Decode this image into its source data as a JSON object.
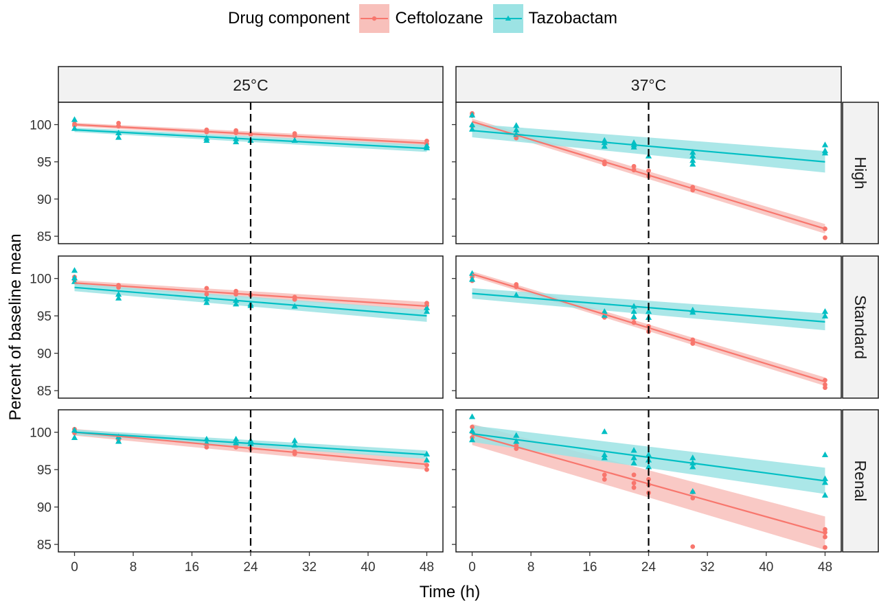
{
  "legend": {
    "title": "Drug component",
    "items": [
      {
        "label": "Ceftolozane",
        "color": "#F8766D",
        "fill": "#F8C0BB",
        "shape": "circle"
      },
      {
        "label": "Tazobactam",
        "color": "#00BFC4",
        "fill": "#9CE3E4",
        "shape": "triangle"
      }
    ]
  },
  "chart_data": {
    "type": "scatter",
    "subtype": "faceted scatter with linear regression fits and confidence bands",
    "xlabel": "Time (h)",
    "ylabel": "Percent of baseline mean",
    "x_ticks": [
      0,
      8,
      16,
      24,
      32,
      40,
      48
    ],
    "y_ticks": [
      85,
      90,
      95,
      100
    ],
    "ylim": [
      84,
      103
    ],
    "xlim": [
      -2.2,
      50.2
    ],
    "vline_x": 24,
    "col_strips": [
      "25°C",
      "37°C"
    ],
    "row_strips": [
      "High",
      "Standard",
      "Renal"
    ],
    "panels": [
      {
        "row": "High",
        "col": "25°C",
        "fits": {
          "Ceftolozane": [
            100.0,
            97.5
          ],
          "Tazobactam": [
            99.3,
            96.8
          ]
        },
        "band": {
          "Ceftolozane": 0.25,
          "Tazobactam": 0.3
        },
        "points": {
          "Ceftolozane": [
            [
              0,
              100.1
            ],
            [
              0,
              99.9
            ],
            [
              6,
              100.2
            ],
            [
              6,
              99.8
            ],
            [
              18,
              99.3
            ],
            [
              18,
              99.0
            ],
            [
              22,
              99.2
            ],
            [
              22,
              98.9
            ],
            [
              24,
              98.7
            ],
            [
              30,
              98.8
            ],
            [
              30,
              98.5
            ],
            [
              48,
              97.8
            ],
            [
              48,
              97.4
            ]
          ],
          "Tazobactam": [
            [
              0,
              100.7
            ],
            [
              0,
              99.5
            ],
            [
              6,
              98.9
            ],
            [
              6,
              98.3
            ],
            [
              18,
              98.2
            ],
            [
              18,
              97.9
            ],
            [
              22,
              98.1
            ],
            [
              22,
              97.7
            ],
            [
              24,
              97.9
            ],
            [
              30,
              97.9
            ],
            [
              48,
              97.2
            ],
            [
              48,
              96.9
            ]
          ]
        }
      },
      {
        "row": "High",
        "col": "37°C",
        "fits": {
          "Ceftolozane": [
            100.4,
            86.0
          ],
          "Tazobactam": [
            99.2,
            95.0
          ]
        },
        "band": {
          "Ceftolozane": 0.4,
          "Tazobactam": 0.9
        },
        "points": {
          "Ceftolozane": [
            [
              0,
              101.5
            ],
            [
              0,
              101.2
            ],
            [
              0,
              99.8
            ],
            [
              6,
              98.6
            ],
            [
              6,
              98.2
            ],
            [
              18,
              95.0
            ],
            [
              18,
              94.7
            ],
            [
              22,
              94.4
            ],
            [
              22,
              93.9
            ],
            [
              24,
              93.8
            ],
            [
              24,
              93.1
            ],
            [
              30,
              91.6
            ],
            [
              30,
              91.2
            ],
            [
              48,
              86.0
            ],
            [
              48,
              84.8
            ]
          ],
          "Tazobactam": [
            [
              0,
              101.3
            ],
            [
              0,
              100.0
            ],
            [
              0,
              99.4
            ],
            [
              6,
              99.9
            ],
            [
              6,
              99.3
            ],
            [
              6,
              98.7
            ],
            [
              18,
              97.9
            ],
            [
              18,
              97.6
            ],
            [
              18,
              97.1
            ],
            [
              22,
              97.6
            ],
            [
              22,
              97.3
            ],
            [
              22,
              97.0
            ],
            [
              24,
              95.8
            ],
            [
              30,
              96.3
            ],
            [
              30,
              95.8
            ],
            [
              30,
              95.2
            ],
            [
              30,
              94.7
            ],
            [
              48,
              97.3
            ],
            [
              48,
              96.5
            ],
            [
              48,
              96.2
            ]
          ]
        }
      },
      {
        "row": "Standard",
        "col": "25°C",
        "fits": {
          "Ceftolozane": [
            99.4,
            96.3
          ],
          "Tazobactam": [
            98.8,
            95.0
          ]
        },
        "band": {
          "Ceftolozane": 0.35,
          "Tazobactam": 0.5
        },
        "points": {
          "Ceftolozane": [
            [
              0,
              100.2
            ],
            [
              0,
              99.8
            ],
            [
              6,
              99.1
            ],
            [
              6,
              98.8
            ],
            [
              18,
              98.7
            ],
            [
              18,
              97.9
            ],
            [
              22,
              98.3
            ],
            [
              22,
              97.9
            ],
            [
              24,
              97.8
            ],
            [
              30,
              97.5
            ],
            [
              30,
              97.2
            ],
            [
              48,
              96.7
            ],
            [
              48,
              96.4
            ]
          ],
          "Tazobactam": [
            [
              0,
              101.1
            ],
            [
              0,
              100.1
            ],
            [
              0,
              99.6
            ],
            [
              6,
              97.9
            ],
            [
              6,
              97.4
            ],
            [
              18,
              97.3
            ],
            [
              18,
              96.8
            ],
            [
              22,
              97.1
            ],
            [
              22,
              96.6
            ],
            [
              24,
              96.6
            ],
            [
              24,
              96.4
            ],
            [
              30,
              96.3
            ],
            [
              48,
              96.1
            ],
            [
              48,
              95.6
            ]
          ]
        }
      },
      {
        "row": "Standard",
        "col": "37°C",
        "fits": {
          "Ceftolozane": [
            100.6,
            86.2
          ],
          "Tazobactam": [
            98.0,
            94.2
          ]
        },
        "band": {
          "Ceftolozane": 0.35,
          "Tazobactam": 0.7
        },
        "points": {
          "Ceftolozane": [
            [
              0,
              100.2
            ],
            [
              0,
              99.7
            ],
            [
              6,
              99.2
            ],
            [
              6,
              98.9
            ],
            [
              18,
              95.4
            ],
            [
              18,
              94.8
            ],
            [
              22,
              94.7
            ],
            [
              22,
              94.1
            ],
            [
              24,
              93.6
            ],
            [
              24,
              92.9
            ],
            [
              30,
              91.8
            ],
            [
              30,
              91.3
            ],
            [
              48,
              86.4
            ],
            [
              48,
              85.8
            ],
            [
              48,
              85.4
            ]
          ],
          "Tazobactam": [
            [
              0,
              100.7
            ],
            [
              0,
              99.9
            ],
            [
              6,
              97.8
            ],
            [
              18,
              95.6
            ],
            [
              18,
              95.1
            ],
            [
              22,
              96.3
            ],
            [
              22,
              95.6
            ],
            [
              22,
              94.9
            ],
            [
              24,
              95.6
            ],
            [
              24,
              94.8
            ],
            [
              30,
              95.8
            ],
            [
              30,
              95.5
            ],
            [
              48,
              95.6
            ],
            [
              48,
              95.0
            ]
          ]
        }
      },
      {
        "row": "Renal",
        "col": "25°C",
        "fits": {
          "Ceftolozane": [
            100.0,
            95.7
          ],
          "Tazobactam": [
            100.0,
            97.0
          ]
        },
        "band": {
          "Ceftolozane": 0.45,
          "Tazobactam": 0.35
        },
        "points": {
          "Ceftolozane": [
            [
              0,
              100.4
            ],
            [
              0,
              99.9
            ],
            [
              6,
              99.4
            ],
            [
              6,
              99.0
            ],
            [
              18,
              98.4
            ],
            [
              18,
              98.0
            ],
            [
              22,
              98.3
            ],
            [
              22,
              98.0
            ],
            [
              24,
              97.8
            ],
            [
              30,
              97.4
            ],
            [
              30,
              97.1
            ],
            [
              48,
              95.6
            ],
            [
              48,
              95.0
            ]
          ],
          "Tazobactam": [
            [
              0,
              100.3
            ],
            [
              0,
              99.3
            ],
            [
              6,
              99.4
            ],
            [
              6,
              98.8
            ],
            [
              18,
              99.1
            ],
            [
              18,
              98.6
            ],
            [
              22,
              99.1
            ],
            [
              22,
              98.6
            ],
            [
              24,
              98.9
            ],
            [
              24,
              98.5
            ],
            [
              30,
              98.9
            ],
            [
              30,
              98.3
            ],
            [
              48,
              97.1
            ],
            [
              48,
              96.3
            ]
          ]
        }
      },
      {
        "row": "Renal",
        "col": "37°C",
        "fits": {
          "Ceftolozane": [
            99.7,
            86.5
          ],
          "Tazobactam": [
            99.8,
            93.5
          ]
        },
        "band": {
          "Ceftolozane": 1.4,
          "Tazobactam": 1.1
        },
        "points": {
          "Ceftolozane": [
            [
              0,
              100.7
            ],
            [
              0,
              100.0
            ],
            [
              0,
              99.3
            ],
            [
              6,
              98.2
            ],
            [
              6,
              97.8
            ],
            [
              18,
              94.3
            ],
            [
              18,
              93.7
            ],
            [
              22,
              94.3
            ],
            [
              22,
              93.2
            ],
            [
              22,
              92.6
            ],
            [
              24,
              93.7
            ],
            [
              24,
              93.0
            ],
            [
              24,
              91.9
            ],
            [
              30,
              92.0
            ],
            [
              30,
              91.2
            ],
            [
              30,
              84.7
            ],
            [
              48,
              87.0
            ],
            [
              48,
              86.6
            ],
            [
              48,
              86.0
            ],
            [
              48,
              84.6
            ]
          ],
          "Tazobactam": [
            [
              0,
              102.1
            ],
            [
              0,
              100.2
            ],
            [
              0,
              99.0
            ],
            [
              6,
              99.6
            ],
            [
              6,
              98.8
            ],
            [
              18,
              100.1
            ],
            [
              18,
              97.0
            ],
            [
              18,
              96.6
            ],
            [
              22,
              97.6
            ],
            [
              22,
              96.6
            ],
            [
              22,
              95.9
            ],
            [
              24,
              97.0
            ],
            [
              24,
              96.3
            ],
            [
              24,
              95.4
            ],
            [
              30,
              96.6
            ],
            [
              30,
              95.9
            ],
            [
              30,
              95.4
            ],
            [
              30,
              92.1
            ],
            [
              48,
              97.0
            ],
            [
              48,
              93.8
            ],
            [
              48,
              93.3
            ],
            [
              48,
              91.6
            ]
          ]
        }
      }
    ]
  }
}
